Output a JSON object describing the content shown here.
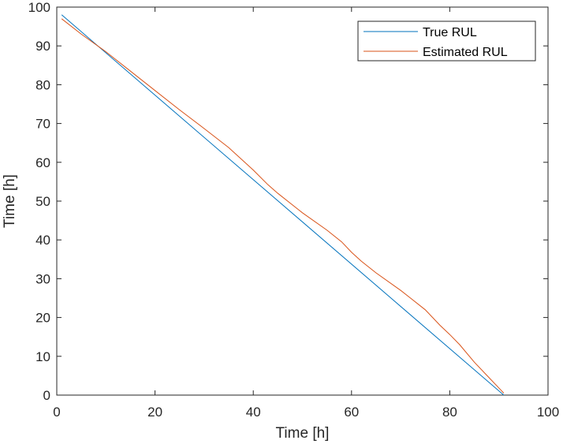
{
  "chart_data": {
    "type": "line",
    "title": "",
    "xlabel": "Time [h]",
    "ylabel": "Time [h]",
    "xlim": [
      0,
      100
    ],
    "ylim": [
      0,
      100
    ],
    "xticks": [
      0,
      20,
      40,
      60,
      80,
      100
    ],
    "yticks": [
      0,
      10,
      20,
      30,
      40,
      50,
      60,
      70,
      80,
      90,
      100
    ],
    "grid": false,
    "legend_position": "top-right",
    "series": [
      {
        "name": "True RUL",
        "color": "#0072BD",
        "x": [
          1,
          91
        ],
        "y": [
          98,
          0
        ]
      },
      {
        "name": "Estimated RUL",
        "color": "#D95319",
        "x": [
          1,
          5,
          10,
          15,
          20,
          25,
          30,
          35,
          40,
          43,
          45,
          50,
          55,
          58,
          60,
          62,
          65,
          70,
          72,
          75,
          78,
          80,
          82,
          85,
          88,
          91
        ],
        "y": [
          97,
          93,
          88.5,
          83.5,
          78.5,
          73.5,
          68.7,
          63.8,
          58,
          54.2,
          52,
          47,
          42.5,
          39.5,
          36.8,
          34.5,
          31.5,
          27,
          25,
          22,
          18,
          15.6,
          13,
          8.5,
          4.5,
          0.5
        ]
      }
    ]
  }
}
